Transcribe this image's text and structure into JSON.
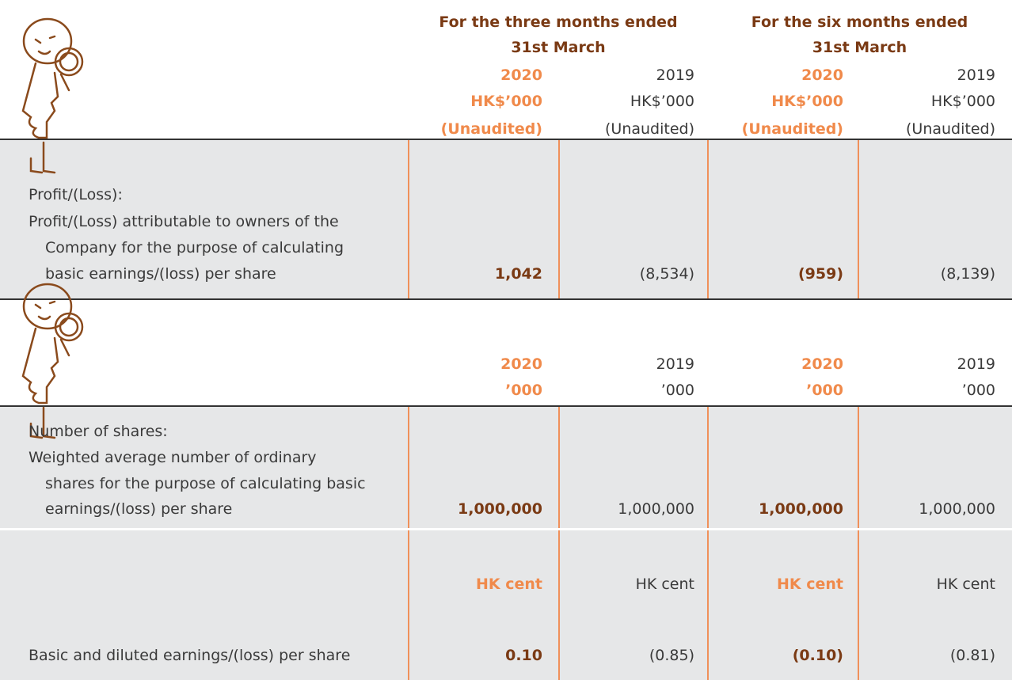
{
  "header": {
    "groups": [
      {
        "title": "For the three months ended",
        "subtitle": "31st March"
      },
      {
        "title": "For the six months ended",
        "subtitle": "31st March"
      }
    ],
    "columns": [
      {
        "year": "2020",
        "unit": "HK$’000",
        "note": "(Unaudited)"
      },
      {
        "year": "2019",
        "unit": "HK$’000",
        "note": "(Unaudited)"
      },
      {
        "year": "2020",
        "unit": "HK$’000",
        "note": "(Unaudited)"
      },
      {
        "year": "2019",
        "unit": "HK$’000",
        "note": "(Unaudited)"
      }
    ]
  },
  "profit": {
    "heading": "Profit/(Loss):",
    "label_lines": [
      "Profit/(Loss) attributable to owners of the",
      "Company for the purpose of calculating",
      "basic earnings/(loss) per share"
    ],
    "values": [
      "1,042",
      "(8,534)",
      "(959)",
      "(8,139)"
    ]
  },
  "shares": {
    "columns": [
      {
        "year": "2020",
        "unit": "’000"
      },
      {
        "year": "2019",
        "unit": "’000"
      },
      {
        "year": "2020",
        "unit": "’000"
      },
      {
        "year": "2019",
        "unit": "’000"
      }
    ],
    "heading": "Number of shares:",
    "label_lines": [
      "Weighted average number of ordinary",
      "shares for the purpose of calculating basic",
      "earnings/(loss) per share"
    ],
    "values": [
      "1,000,000",
      "1,000,000",
      "1,000,000",
      "1,000,000"
    ]
  },
  "eps": {
    "units": [
      "HK cent",
      "HK cent",
      "HK cent",
      "HK cent"
    ],
    "label": "Basic and diluted earnings/(loss) per share",
    "values": [
      "0.10",
      "(0.85)",
      "(0.10)",
      "(0.81)"
    ]
  }
}
